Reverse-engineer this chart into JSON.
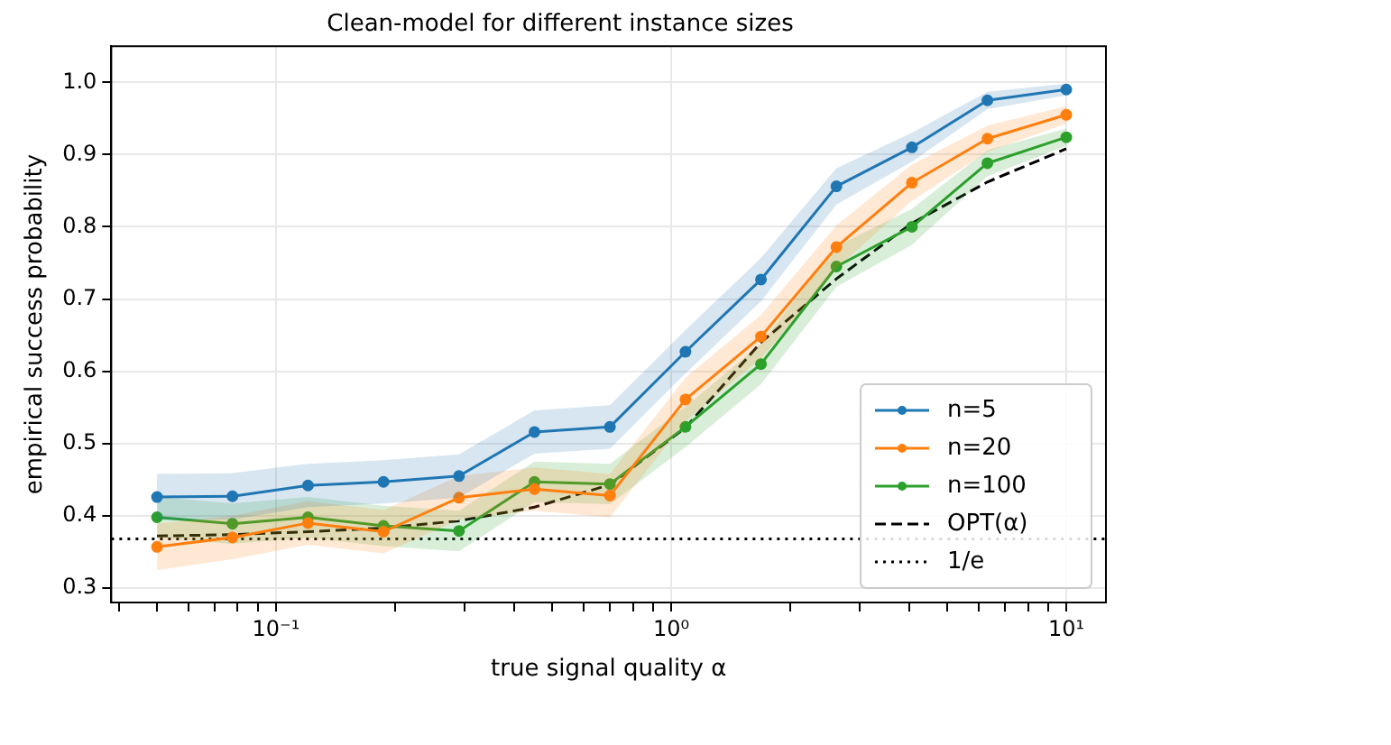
{
  "chart_data": {
    "type": "line",
    "title": "Clean-model for different instance sizes",
    "xlabel": "true signal quality α",
    "ylabel": "empirical success probability",
    "log": "x",
    "grid": true,
    "legend": "bottom right",
    "marker": "circle",
    "line_style": "solid",
    "xlim": [
      0.0383,
      12.6
    ],
    "ylim": [
      0.28,
      1.05
    ],
    "xticks": [
      {
        "value": 0.04,
        "label": null
      },
      {
        "value": 0.05,
        "label": null
      },
      {
        "value": 0.06,
        "label": null
      },
      {
        "value": 0.07,
        "label": null
      },
      {
        "value": 0.08,
        "label": null
      },
      {
        "value": 0.09,
        "label": null
      },
      {
        "value": 0.1,
        "label": "10⁻¹"
      },
      {
        "value": 0.2,
        "label": null
      },
      {
        "value": 0.3,
        "label": null
      },
      {
        "value": 0.4,
        "label": null
      },
      {
        "value": 0.5,
        "label": null
      },
      {
        "value": 0.6,
        "label": null
      },
      {
        "value": 0.7,
        "label": null
      },
      {
        "value": 0.8,
        "label": null
      },
      {
        "value": 0.9,
        "label": null
      },
      {
        "value": 1,
        "label": "10⁰"
      },
      {
        "value": 2,
        "label": null
      },
      {
        "value": 3,
        "label": null
      },
      {
        "value": 4,
        "label": null
      },
      {
        "value": 5,
        "label": null
      },
      {
        "value": 6,
        "label": null
      },
      {
        "value": 7,
        "label": null
      },
      {
        "value": 8,
        "label": null
      },
      {
        "value": 9,
        "label": null
      },
      {
        "value": 10,
        "label": "10¹"
      }
    ],
    "yticks": [
      0.3,
      0.4,
      0.5,
      0.6,
      0.7,
      0.8,
      0.9,
      {
        "value": 1,
        "label": "1.0"
      }
    ],
    "x": [
      0.05,
      0.0776,
      0.1205,
      0.1871,
      0.2905,
      0.451,
      0.7,
      1.087,
      1.688,
      2.62,
      4.068,
      6.316,
      10
    ],
    "series": [
      {
        "name": "n=5",
        "color": "#1f77b4",
        "values": [
          0.426,
          0.427,
          0.442,
          0.447,
          0.455,
          0.516,
          0.523,
          0.627,
          0.727,
          0.856,
          0.91,
          0.975,
          0.99
        ],
        "lower": [
          0.394,
          0.395,
          0.412,
          0.417,
          0.425,
          0.486,
          0.493,
          0.597,
          0.697,
          0.831,
          0.89,
          0.963,
          0.982
        ],
        "upper": [
          0.458,
          0.459,
          0.472,
          0.477,
          0.485,
          0.546,
          0.553,
          0.657,
          0.757,
          0.881,
          0.93,
          0.987,
          0.998
        ]
      },
      {
        "name": "n=20",
        "color": "#ff7f0e",
        "values": [
          0.357,
          0.37,
          0.39,
          0.378,
          0.425,
          0.437,
          0.428,
          0.561,
          0.648,
          0.772,
          0.861,
          0.922,
          0.955
        ],
        "lower": [
          0.325,
          0.34,
          0.36,
          0.348,
          0.395,
          0.407,
          0.398,
          0.531,
          0.618,
          0.742,
          0.836,
          0.904,
          0.943
        ],
        "upper": [
          0.389,
          0.4,
          0.42,
          0.408,
          0.455,
          0.467,
          0.458,
          0.591,
          0.678,
          0.802,
          0.886,
          0.94,
          0.967
        ]
      },
      {
        "name": "n=100",
        "color": "#2ca02c",
        "values": [
          0.398,
          0.389,
          0.398,
          0.386,
          0.379,
          0.447,
          0.444,
          0.523,
          0.61,
          0.745,
          0.8,
          0.888,
          0.924
        ],
        "lower": [
          0.37,
          0.361,
          0.37,
          0.358,
          0.351,
          0.419,
          0.416,
          0.495,
          0.582,
          0.717,
          0.775,
          0.87,
          0.912
        ],
        "upper": [
          0.426,
          0.417,
          0.426,
          0.414,
          0.407,
          0.475,
          0.472,
          0.551,
          0.638,
          0.773,
          0.825,
          0.906,
          0.936
        ]
      },
      {
        "name": "OPT(α)",
        "color": "#000000",
        "marker": "none",
        "line_style": "dashed",
        "values": [
          0.372,
          0.374,
          0.378,
          0.383,
          0.393,
          0.412,
          0.443,
          0.522,
          0.64,
          0.728,
          0.805,
          0.862,
          0.908
        ]
      }
    ],
    "ref_lines": [
      {
        "axis": "y",
        "value": 0.3679,
        "label": "1/e",
        "color": "#000000",
        "line_style": "dotted"
      }
    ]
  }
}
